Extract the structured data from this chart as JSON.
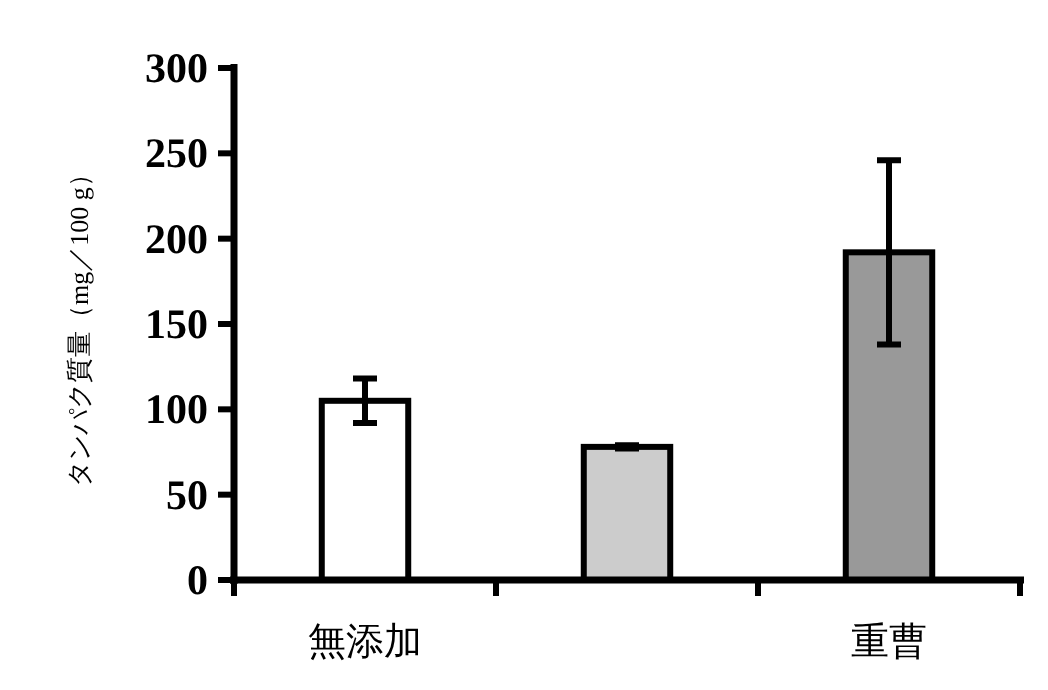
{
  "chart_data": {
    "type": "bar",
    "ylabel": "タンパク質量（mg／100 g）",
    "categories": [
      "無添加",
      null,
      "重曹"
    ],
    "values": [
      105,
      78,
      192
    ],
    "errors": [
      13,
      1,
      [
        138,
        246
      ]
    ],
    "colors": [
      "#ffffff",
      "#cccccc",
      "#999999"
    ],
    "ylim": [
      0,
      300
    ],
    "yticks": [
      0,
      50,
      100,
      150,
      200,
      250,
      300
    ],
    "grid": false
  }
}
